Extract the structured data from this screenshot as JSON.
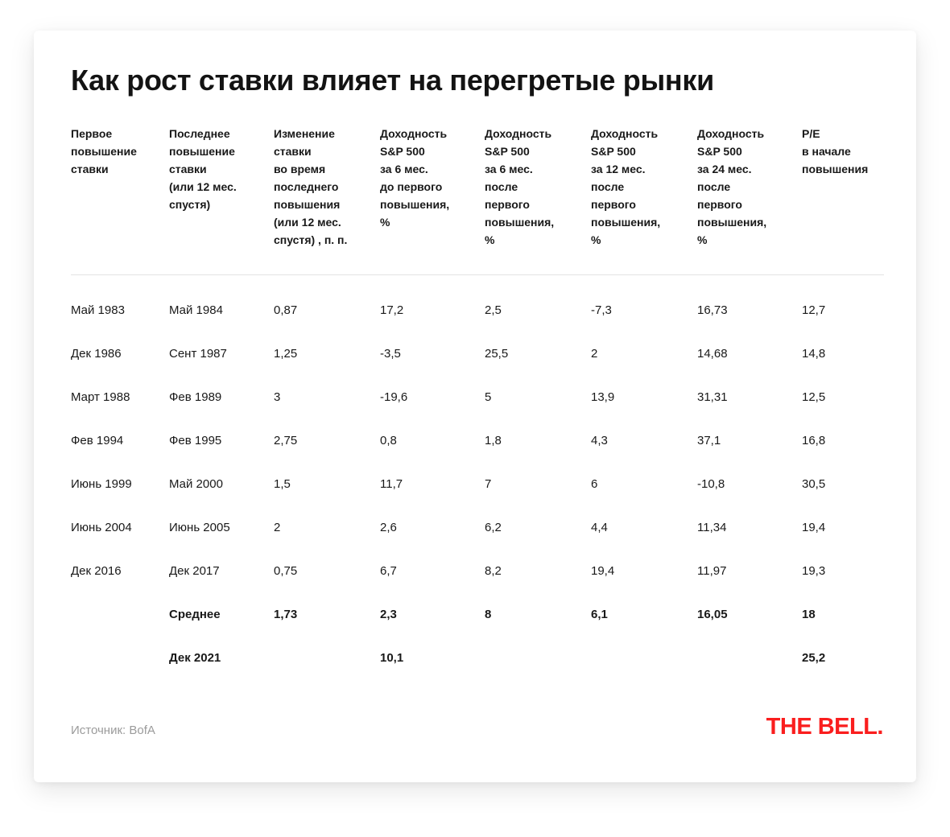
{
  "chart_data": {
    "type": "table",
    "title": "Как рост ставки влияет на перегретые рынки",
    "columns": [
      "Первое\nповышение\nставки",
      "Последнее\nповышение\nставки\n(или 12 мес.\nспустя)",
      "Изменение\nставки\nво время\nпоследнего\nповышения\n(или 12 мес.\nспустя) , п. п.",
      "Доходность\nS&P 500\nза 6 мес.\nдо первого\nповышения,\n%",
      "Доходность\nS&P 500\nза 6 мес.\nпосле\nпервого\nповышения,\n%",
      "Доходность\nS&P 500\nза 12 мес.\nпосле\nпервого\nповышения,\n%",
      "Доходность\nS&P 500\nза 24 мес.\nпосле\nпервого\nповышения,\n%",
      "P/E\nв начале\nповышения"
    ],
    "rows": [
      [
        "Май 1983",
        "Май 1984",
        "0,87",
        "17,2",
        "2,5",
        "-7,3",
        "16,73",
        "12,7"
      ],
      [
        "Дек 1986",
        "Сент 1987",
        "1,25",
        "-3,5",
        "25,5",
        "2",
        "14,68",
        "14,8"
      ],
      [
        "Март 1988",
        "Фев 1989",
        "3",
        "-19,6",
        "5",
        "13,9",
        "31,31",
        "12,5"
      ],
      [
        "Фев 1994",
        "Фев 1995",
        "2,75",
        "0,8",
        "1,8",
        "4,3",
        "37,1",
        "16,8"
      ],
      [
        "Июнь 1999",
        "Май 2000",
        "1,5",
        "11,7",
        "7",
        "6",
        "-10,8",
        "30,5"
      ],
      [
        "Июнь 2004",
        "Июнь 2005",
        "2",
        "2,6",
        "6,2",
        "4,4",
        "11,34",
        "19,4"
      ],
      [
        "Дек 2016",
        "Дек 2017",
        "0,75",
        "6,7",
        "8,2",
        "19,4",
        "11,97",
        "19,3"
      ],
      [
        "",
        "Среднее",
        "1,73",
        "2,3",
        "8",
        "6,1",
        "16,05",
        "18"
      ],
      [
        "",
        "Дек 2021",
        "",
        "10,1",
        "",
        "",
        "",
        "25,2"
      ]
    ],
    "layout": {
      "grid": "off",
      "summary_rows_bold": [
        7,
        8
      ]
    }
  },
  "footer": {
    "source": "Источник: BofA",
    "logo": "THE BELL."
  },
  "colors": {
    "brand_red": "#fa1e1e",
    "text": "#191919",
    "muted": "#9b9b9b",
    "divider": "#e3e3e3"
  }
}
